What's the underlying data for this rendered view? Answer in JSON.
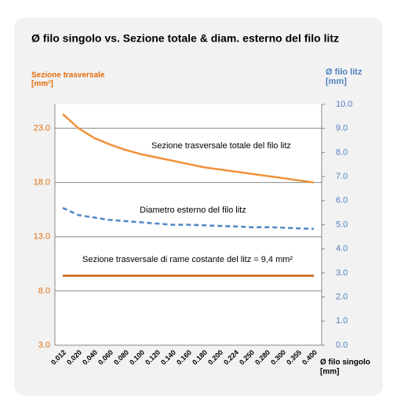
{
  "chart_data": {
    "type": "line",
    "title": "Ø filo singolo vs. Sezione totale & diam. esterno del filo litz",
    "y_label": [
      "Sezione trasversale",
      "[mm²]"
    ],
    "y2_label": [
      "Ø filo litz",
      "[mm]"
    ],
    "x_label": [
      "Ø filo singolo",
      "[mm]"
    ],
    "categories": [
      "0.012",
      "0.020",
      "0.040",
      "0.060",
      "0.080",
      "0.100",
      "0.120",
      "0.140",
      "0.160",
      "0.180",
      "0.200",
      "0.224",
      "0.250",
      "0.280",
      "0.300",
      "0.355",
      "0.400"
    ],
    "series": [
      {
        "name": "Sezione trasversale totale  del filo litz",
        "color": "#f0913a",
        "axis": "y",
        "dash": false,
        "values": [
          24.3,
          23.0,
          22.1,
          21.5,
          21.0,
          20.6,
          20.3,
          20.0,
          19.7,
          19.4,
          19.2,
          19.0,
          18.8,
          18.6,
          18.4,
          18.2,
          18.0
        ]
      },
      {
        "name": "Diametro esterno del filo litz",
        "color": "#4f86c6",
        "axis": "y2",
        "dash": true,
        "values": [
          5.7,
          5.4,
          5.3,
          5.2,
          5.15,
          5.1,
          5.05,
          5.0,
          5.0,
          4.98,
          4.95,
          4.93,
          4.9,
          4.9,
          4.88,
          4.85,
          4.83
        ]
      },
      {
        "name": "Sezione trasversale di rame costante del litz = 9,4 mm²",
        "color": "#c55a11",
        "axis": "y",
        "dash": false,
        "values": [
          9.4,
          9.4,
          9.4,
          9.4,
          9.4,
          9.4,
          9.4,
          9.4,
          9.4,
          9.4,
          9.4,
          9.4,
          9.4,
          9.4,
          9.4,
          9.4,
          9.4
        ]
      }
    ],
    "ylim": [
      3,
      25.2
    ],
    "yticks": [
      {
        "value": 3,
        "label": "3.0"
      },
      {
        "value": 8,
        "label": "8.0"
      },
      {
        "value": 13,
        "label": "13.0"
      },
      {
        "value": 18,
        "label": "18.0"
      },
      {
        "value": 23,
        "label": "23.0"
      }
    ],
    "y2lim": [
      0,
      10
    ],
    "y2ticks": [
      {
        "value": 0,
        "label": "0.0"
      },
      {
        "value": 1,
        "label": "1.0"
      },
      {
        "value": 2,
        "label": "2.0"
      },
      {
        "value": 3,
        "label": "3.0"
      },
      {
        "value": 4,
        "label": "4.0"
      },
      {
        "value": 5,
        "label": "5.0"
      },
      {
        "value": 6,
        "label": "6.0"
      },
      {
        "value": 7,
        "label": "7.0"
      },
      {
        "value": 8,
        "label": "8.0"
      },
      {
        "value": 9,
        "label": "9.0"
      },
      {
        "value": 10,
        "label": "10.0"
      }
    ],
    "grid": true
  }
}
